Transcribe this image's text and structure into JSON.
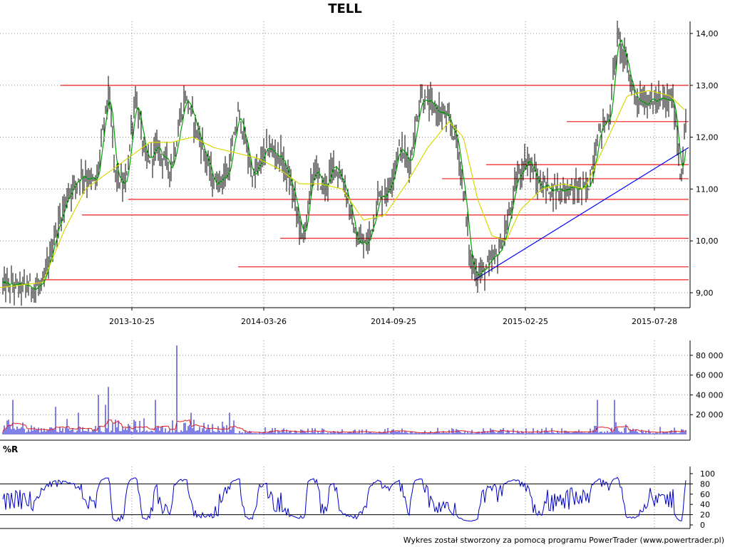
{
  "title": "TELL",
  "footer": "Wykres został stworzony za pomocą programu PowerTrader (www.powertrader.pl)",
  "chart_data": [
    {
      "panel": "price",
      "type": "candlestick-line",
      "title": "TELL",
      "x_ticks": [
        "2013-10-25",
        "2014-03-26",
        "2014-09-25",
        "2015-02-25",
        "2015-07-28"
      ],
      "y_ticks": [
        "9,00",
        "10,00",
        "11,00",
        "12,00",
        "13,00",
        "14,00"
      ],
      "ylim": [
        8.9,
        14.05
      ],
      "grid": true,
      "colors": {
        "bars": "#000000",
        "ma_short": "#00a000",
        "ma_long": "#d8d800",
        "support_lines": "#f03030",
        "trendline": "#0000ff"
      },
      "price_path": [
        [
          0,
          9.15
        ],
        [
          60,
          9.1
        ],
        [
          75,
          10.0
        ],
        [
          95,
          10.9
        ],
        [
          115,
          11.3
        ],
        [
          135,
          11.1
        ],
        [
          152,
          12.9
        ],
        [
          162,
          11.3
        ],
        [
          175,
          11.0
        ],
        [
          190,
          12.8
        ],
        [
          205,
          11.5
        ],
        [
          220,
          11.8
        ],
        [
          240,
          11.4
        ],
        [
          260,
          12.8
        ],
        [
          280,
          12.0
        ],
        [
          300,
          11.1
        ],
        [
          320,
          11.3
        ],
        [
          335,
          12.5
        ],
        [
          355,
          11.2
        ],
        [
          375,
          11.8
        ],
        [
          395,
          11.6
        ],
        [
          410,
          11.0
        ],
        [
          425,
          10.0
        ],
        [
          440,
          11.4
        ],
        [
          455,
          11.0
        ],
        [
          470,
          11.5
        ],
        [
          485,
          11.0
        ],
        [
          500,
          10.0
        ],
        [
          515,
          9.9
        ],
        [
          530,
          10.8
        ],
        [
          545,
          11.0
        ],
        [
          560,
          11.8
        ],
        [
          575,
          11.5
        ],
        [
          590,
          12.8
        ],
        [
          605,
          12.6
        ],
        [
          625,
          12.4
        ],
        [
          640,
          12.0
        ],
        [
          650,
          11.0
        ],
        [
          660,
          9.6
        ],
        [
          670,
          9.35
        ],
        [
          685,
          9.5
        ],
        [
          700,
          9.8
        ],
        [
          712,
          10.3
        ],
        [
          725,
          11.2
        ],
        [
          740,
          11.6
        ],
        [
          755,
          11.1
        ],
        [
          775,
          11.0
        ],
        [
          800,
          11.0
        ],
        [
          825,
          11.0
        ],
        [
          840,
          12.1
        ],
        [
          855,
          12.4
        ],
        [
          866,
          13.95
        ],
        [
          875,
          13.6
        ],
        [
          890,
          12.8
        ],
        [
          905,
          12.7
        ],
        [
          930,
          12.7
        ],
        [
          945,
          12.7
        ],
        [
          955,
          11.2
        ],
        [
          962,
          12.2
        ]
      ],
      "moving_average_long": [
        [
          0,
          9.1
        ],
        [
          60,
          9.2
        ],
        [
          90,
          10.2
        ],
        [
          120,
          11.0
        ],
        [
          150,
          11.3
        ],
        [
          180,
          11.6
        ],
        [
          210,
          11.9
        ],
        [
          240,
          11.9
        ],
        [
          270,
          12.0
        ],
        [
          300,
          11.8
        ],
        [
          330,
          11.7
        ],
        [
          360,
          11.6
        ],
        [
          390,
          11.4
        ],
        [
          420,
          11.1
        ],
        [
          450,
          11.1
        ],
        [
          480,
          11.0
        ],
        [
          510,
          10.4
        ],
        [
          540,
          10.5
        ],
        [
          570,
          11.1
        ],
        [
          600,
          11.8
        ],
        [
          630,
          12.3
        ],
        [
          650,
          12.0
        ],
        [
          670,
          10.8
        ],
        [
          690,
          10.1
        ],
        [
          710,
          10.0
        ],
        [
          730,
          10.6
        ],
        [
          760,
          11.0
        ],
        [
          790,
          11.1
        ],
        [
          820,
          11.0
        ],
        [
          850,
          11.9
        ],
        [
          880,
          12.8
        ],
        [
          910,
          12.9
        ],
        [
          940,
          12.8
        ],
        [
          962,
          12.5
        ]
      ],
      "horizontal_lines": [
        {
          "value": 13.0,
          "x_start": 85
        },
        {
          "value": 12.3,
          "x_start": 795
        },
        {
          "value": 11.47,
          "x_start": 682
        },
        {
          "value": 11.2,
          "x_start": 620
        },
        {
          "value": 10.8,
          "x_start": 180
        },
        {
          "value": 10.5,
          "x_start": 115
        },
        {
          "value": 10.05,
          "x_start": 393
        },
        {
          "value": 9.5,
          "x_start": 334
        },
        {
          "value": 9.25,
          "x_start": 60
        }
      ],
      "trendline": {
        "from": [
          666,
          9.25
        ],
        "to": [
          966,
          11.8
        ]
      }
    },
    {
      "panel": "volume",
      "type": "bar",
      "y_ticks": [
        "20 000",
        "40 000",
        "60 000",
        "80 000"
      ],
      "ylim": [
        0,
        95000
      ],
      "colors": {
        "bars": "#0000cc",
        "average": "#e02020"
      },
      "peaks": [
        [
          18,
          35000
        ],
        [
          78,
          28000
        ],
        [
          110,
          22000
        ],
        [
          138,
          40000
        ],
        [
          148,
          30000
        ],
        [
          152,
          48000
        ],
        [
          218,
          35000
        ],
        [
          229,
          50000
        ],
        [
          248,
          90000
        ],
        [
          268,
          22000
        ],
        [
          322,
          22000
        ],
        [
          838,
          35000
        ],
        [
          862,
          35000
        ]
      ]
    },
    {
      "panel": "williams_r",
      "type": "line",
      "label": "%R",
      "y_ticks": [
        "0",
        "20",
        "40",
        "60",
        "80",
        "100"
      ],
      "ylim": [
        0,
        100
      ],
      "reference_lines": [
        20,
        80
      ],
      "colors": {
        "line": "#0000cc"
      }
    }
  ]
}
